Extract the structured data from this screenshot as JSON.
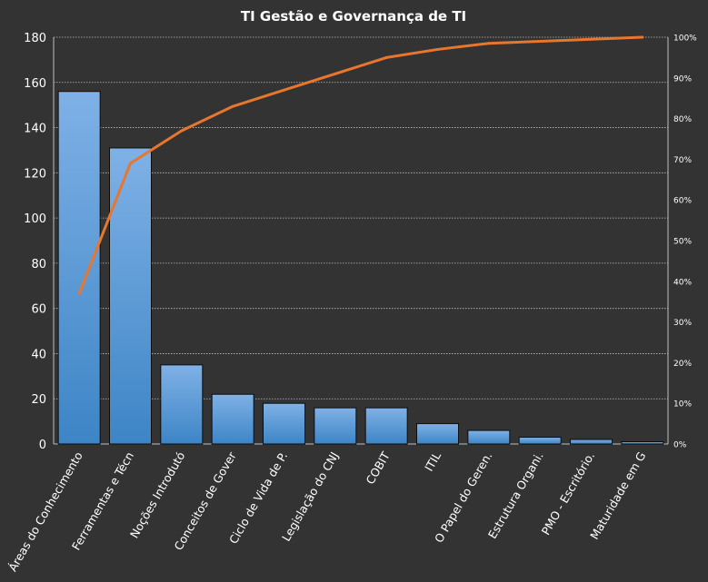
{
  "chart_data": {
    "type": "bar",
    "title": "TI Gestão  e Governança  de TI",
    "categories": [
      "Áreas do Conhecimento",
      "Ferramentas e Técn",
      "Noções Introdutó",
      "Conceitos de Gover",
      "Ciclo de Vida de P.",
      "Legislação do CNJ",
      "COBIT",
      "ITIL",
      "O Papel do Geren.",
      "Estrutura Organi.",
      "PMO - Escritório.",
      "Maturidade em G"
    ],
    "series": [
      {
        "type": "bar",
        "values": [
          156,
          131,
          35,
          22,
          18,
          16,
          16,
          9,
          6,
          3,
          2,
          1
        ]
      },
      {
        "type": "line",
        "axis": "secondary",
        "values": [
          37,
          69,
          77,
          83,
          87,
          91,
          95,
          97,
          98.5,
          99,
          99.5,
          100
        ]
      }
    ],
    "ylim": [
      0,
      180
    ],
    "yticks": [
      "0",
      "20",
      "40",
      "60",
      "80",
      "100",
      "120",
      "140",
      "160",
      "180"
    ],
    "y2lim": [
      0,
      100
    ],
    "y2ticks": [
      "0%",
      "10%",
      "20%",
      "30%",
      "40%",
      "50%",
      "60%",
      "70%",
      "80%",
      "90%",
      "100%"
    ],
    "grid": true,
    "colors": {
      "background": "#333333",
      "bar_top": "#7fb1e6",
      "bar_bottom": "#3d85c6",
      "bar_stroke": "#0d0d0d",
      "line": "#e8762d",
      "grid": "#bfbfbf",
      "text": "#ffffff"
    }
  }
}
